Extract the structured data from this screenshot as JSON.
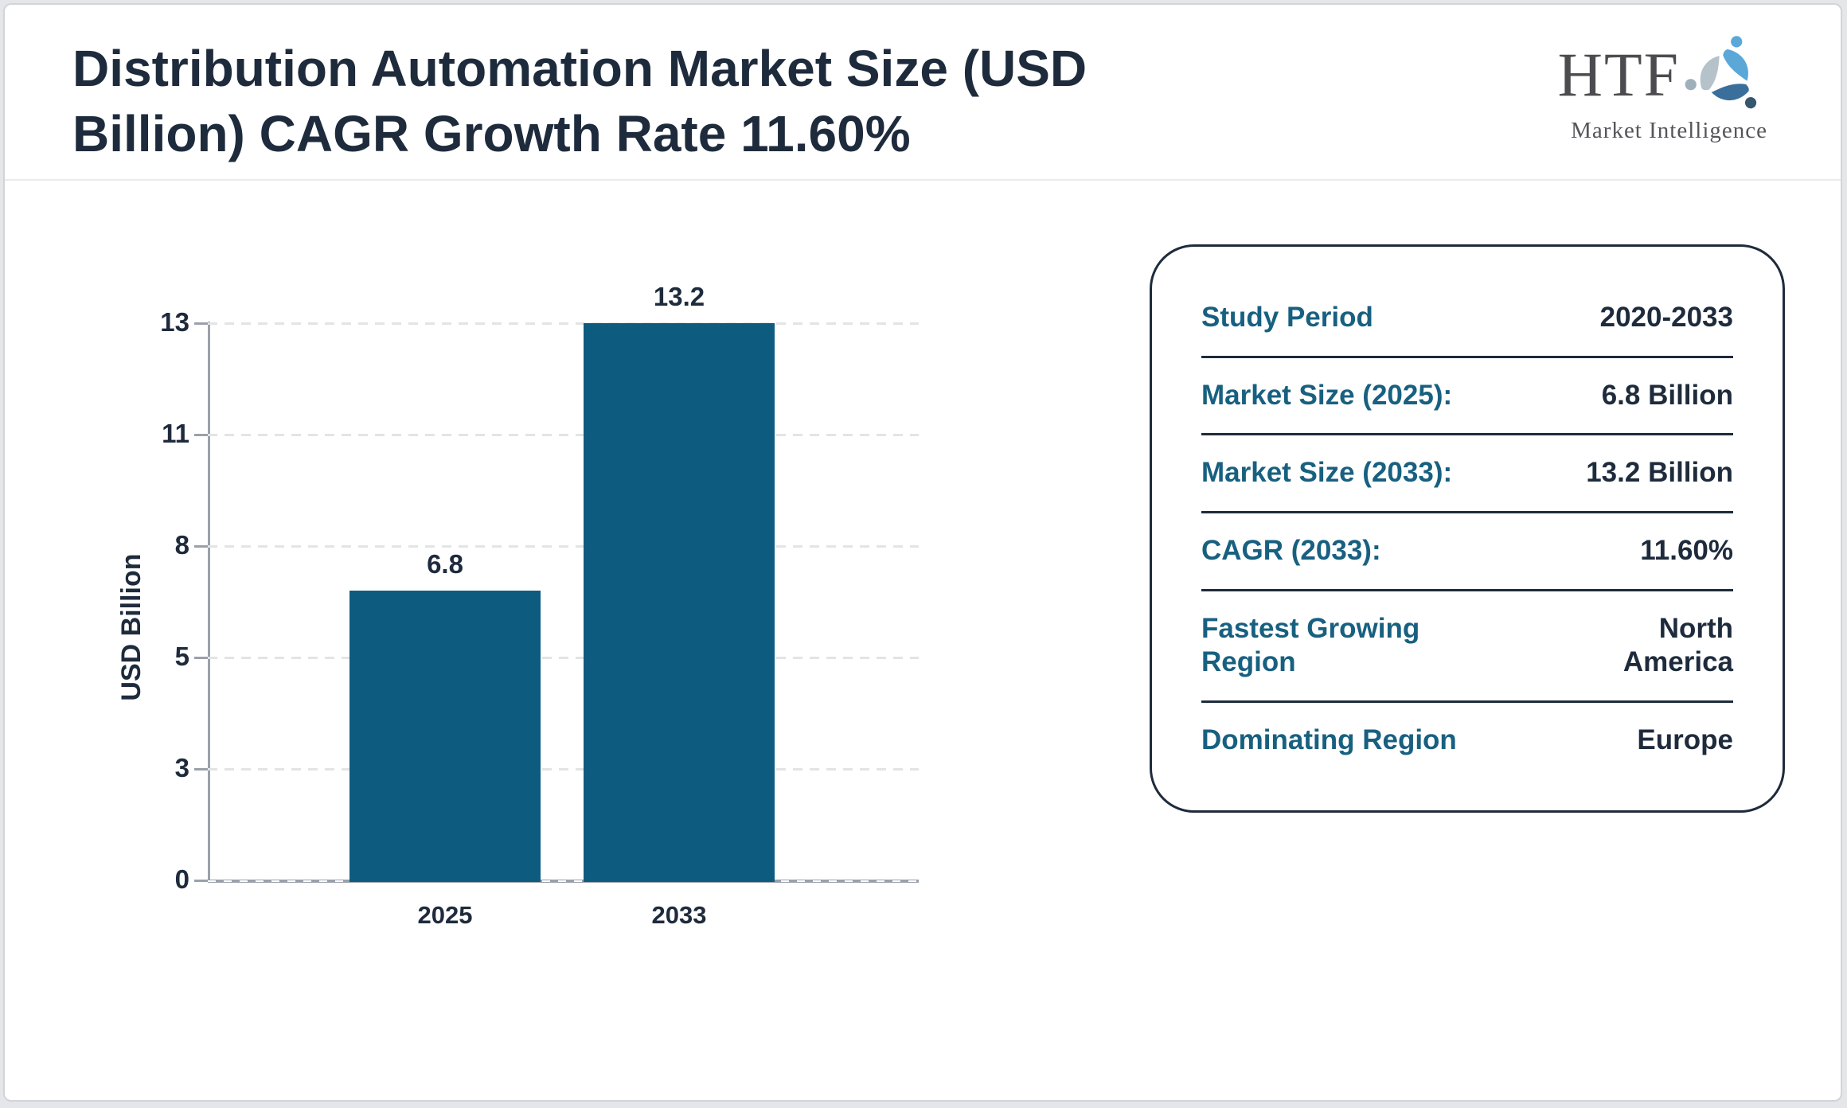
{
  "header": {
    "title": "Distribution Automation Market Size (USD\nBillion) CAGR Growth Rate 11.60%",
    "logo": {
      "acronym": "HTF",
      "subtitle": "Market Intelligence",
      "icon": "three-figure-swirl-icon",
      "colors": {
        "light_blue": "#5aa7d8",
        "steel_blue": "#3a6f9b",
        "gray": "#b6c2ca"
      }
    }
  },
  "chart_data": {
    "type": "bar",
    "categories": [
      "2025",
      "2033"
    ],
    "values": [
      6.8,
      13.2
    ],
    "bar_labels": [
      "6.8",
      "13.2"
    ],
    "title": "",
    "xlabel": "",
    "ylabel": "USD Billion",
    "yticks": [
      0,
      3,
      5,
      8,
      11,
      13
    ],
    "ytick_labels": [
      "0",
      "3",
      "5",
      "8",
      "11",
      "13"
    ],
    "ylim": [
      0,
      13
    ],
    "grid": "horizontal-dashed",
    "legend": "none",
    "bar_color": "#0d5c80",
    "axis_color": "#9aa0ab"
  },
  "panel": {
    "rows": [
      {
        "label": "Study Period",
        "value": "2020-2033"
      },
      {
        "label": "Market Size (2025):",
        "value": "6.8 Billion"
      },
      {
        "label": "Market Size (2033):",
        "value": "13.2 Billion"
      },
      {
        "label": "CAGR (2033):",
        "value": "11.60%"
      },
      {
        "label": "Fastest Growing Region",
        "value": "North America"
      },
      {
        "label": "Dominating Region",
        "value": "Europe"
      }
    ]
  },
  "colors": {
    "accent_teal": "#186080",
    "text_navy": "#1e2b3c",
    "bar_teal": "#0d5c80",
    "page_background": "#e5e6ea"
  }
}
